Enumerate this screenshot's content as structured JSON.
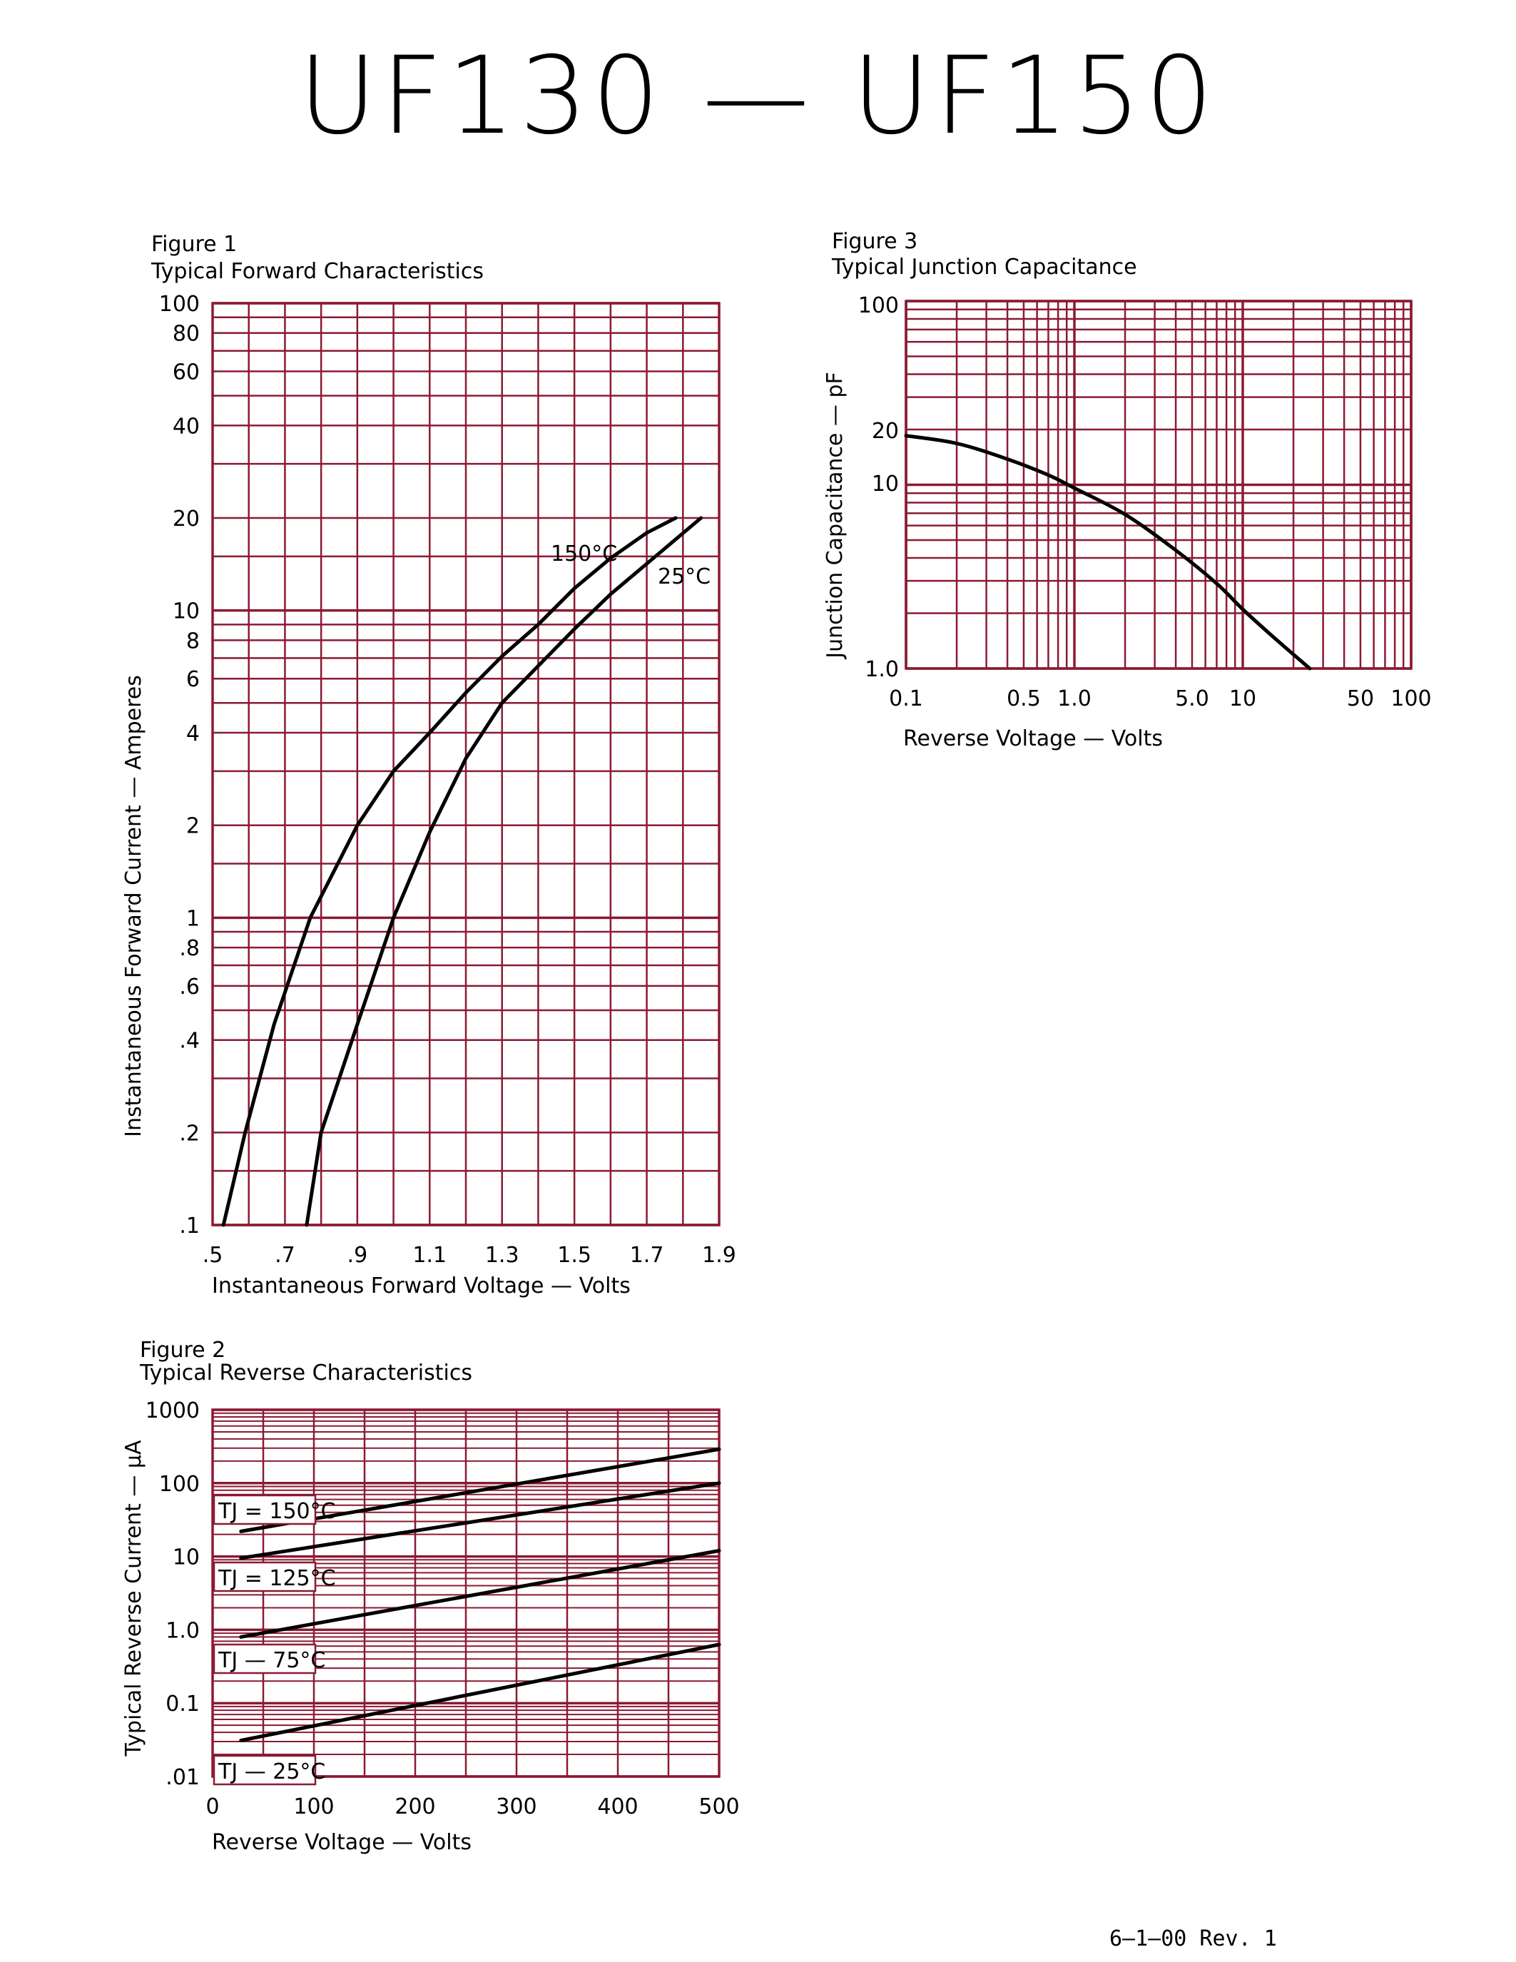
{
  "page": {
    "title": "UF130  —  UF150",
    "footer": "6—1—00   Rev. 1"
  },
  "colors": {
    "grid": "#8b1a32",
    "curve": "#000000"
  },
  "chart_data": [
    {
      "id": "fig1",
      "type": "line",
      "figure_label": "Figure 1",
      "title": "Typical Forward Characteristics",
      "xlabel": "Instantaneous Forward Voltage — Volts",
      "ylabel": "Instantaneous Forward Current — Amperes",
      "xscale": "linear",
      "yscale": "log",
      "xlim": [
        0.5,
        1.9
      ],
      "ylim": [
        0.1,
        100
      ],
      "x_ticks": [
        ".5",
        ".7",
        ".9",
        "1.1",
        "1.3",
        "1.5",
        "1.7",
        "1.9"
      ],
      "y_ticks": [
        {
          "label": ".1",
          "value": 0.1
        },
        {
          "label": ".2",
          "value": 0.2
        },
        {
          "label": ".4",
          "value": 0.4
        },
        {
          "label": ".6",
          "value": 0.6
        },
        {
          "label": ".8",
          "value": 0.8
        },
        {
          "label": "1",
          "value": 1
        },
        {
          "label": "2",
          "value": 2
        },
        {
          "label": "4",
          "value": 4
        },
        {
          "label": "6",
          "value": 6
        },
        {
          "label": "8",
          "value": 8
        },
        {
          "label": "10",
          "value": 10
        },
        {
          "label": "20",
          "value": 20
        },
        {
          "label": "40",
          "value": 40
        },
        {
          "label": "60",
          "value": 60
        },
        {
          "label": "80",
          "value": 80
        },
        {
          "label": "100",
          "value": 100
        }
      ],
      "series": [
        {
          "name": "150°C",
          "points": [
            [
              0.53,
              0.1
            ],
            [
              0.59,
              0.2
            ],
            [
              0.67,
              0.45
            ],
            [
              0.77,
              1.0
            ],
            [
              0.9,
              2.0
            ],
            [
              1.0,
              3.0
            ],
            [
              1.1,
              4.0
            ],
            [
              1.2,
              5.4
            ],
            [
              1.3,
              7.1
            ],
            [
              1.4,
              9.0
            ],
            [
              1.5,
              11.8
            ],
            [
              1.6,
              14.8
            ],
            [
              1.7,
              17.9
            ],
            [
              1.78,
              20.0
            ]
          ]
        },
        {
          "name": "25°C",
          "points": [
            [
              0.76,
              0.1
            ],
            [
              0.8,
              0.2
            ],
            [
              0.9,
              0.45
            ],
            [
              1.0,
              1.0
            ],
            [
              1.1,
              1.9
            ],
            [
              1.2,
              3.3
            ],
            [
              1.3,
              5.0
            ],
            [
              1.4,
              6.6
            ],
            [
              1.5,
              8.7
            ],
            [
              1.6,
              11.3
            ],
            [
              1.7,
              14.2
            ],
            [
              1.85,
              20.0
            ]
          ]
        }
      ]
    },
    {
      "id": "fig2",
      "type": "line",
      "figure_label": "Figure 2",
      "title": "Typical Reverse Characteristics",
      "xlabel": "Reverse Voltage — Volts",
      "ylabel": "Typical Reverse Current — μA",
      "xscale": "linear",
      "yscale": "log",
      "xlim": [
        0,
        500
      ],
      "ylim": [
        0.01,
        1000
      ],
      "x_ticks": [
        "0",
        "100",
        "200",
        "300",
        "400",
        "500"
      ],
      "y_ticks": [
        {
          "label": ".01",
          "value": 0.01
        },
        {
          "label": "0.1",
          "value": 0.1
        },
        {
          "label": "1.0",
          "value": 1
        },
        {
          "label": "10",
          "value": 10
        },
        {
          "label": "100",
          "value": 100
        },
        {
          "label": "1000",
          "value": 1000
        }
      ],
      "series": [
        {
          "name": "TJ = 150°C",
          "points": [
            [
              28,
              22
            ],
            [
              500,
              290
            ]
          ]
        },
        {
          "name": "TJ = 125°C",
          "points": [
            [
              28,
              9.5
            ],
            [
              500,
              100
            ]
          ]
        },
        {
          "name": "TJ — 75°C",
          "points": [
            [
              28,
              0.8
            ],
            [
              500,
              12
            ]
          ]
        },
        {
          "name": "TJ — 25°C",
          "points": [
            [
              28,
              0.031
            ],
            [
              500,
              0.63
            ]
          ]
        }
      ]
    },
    {
      "id": "fig3",
      "type": "line",
      "figure_label": "Figure 3",
      "title": "Typical Junction Capacitance",
      "xlabel": "Reverse Voltage — Volts",
      "ylabel": "Junction Capacitance — pF",
      "xscale": "log",
      "yscale": "log",
      "xlim": [
        0.1,
        100
      ],
      "ylim": [
        1.0,
        100
      ],
      "x_ticks": [
        {
          "label": "0.1",
          "value": 0.1
        },
        {
          "label": "0.5",
          "value": 0.5
        },
        {
          "label": "1.0",
          "value": 1
        },
        {
          "label": "5.0",
          "value": 5
        },
        {
          "label": "10",
          "value": 10
        },
        {
          "label": "50",
          "value": 50
        },
        {
          "label": "100",
          "value": 100
        }
      ],
      "y_ticks": [
        {
          "label": "1.0",
          "value": 1
        },
        {
          "label": "10",
          "value": 10
        },
        {
          "label": "20",
          "value": 20
        },
        {
          "label": "100",
          "value": 100
        }
      ],
      "series": [
        {
          "name": "",
          "points": [
            [
              0.1,
              18.5
            ],
            [
              0.2,
              16.8
            ],
            [
              0.4,
              13.8
            ],
            [
              0.7,
              11.3
            ],
            [
              1.0,
              9.6
            ],
            [
              2.0,
              6.9
            ],
            [
              4.0,
              4.4
            ],
            [
              7.0,
              2.9
            ],
            [
              10.0,
              2.1
            ],
            [
              15.0,
              1.5
            ],
            [
              25.0,
              1.0
            ]
          ]
        }
      ]
    }
  ]
}
